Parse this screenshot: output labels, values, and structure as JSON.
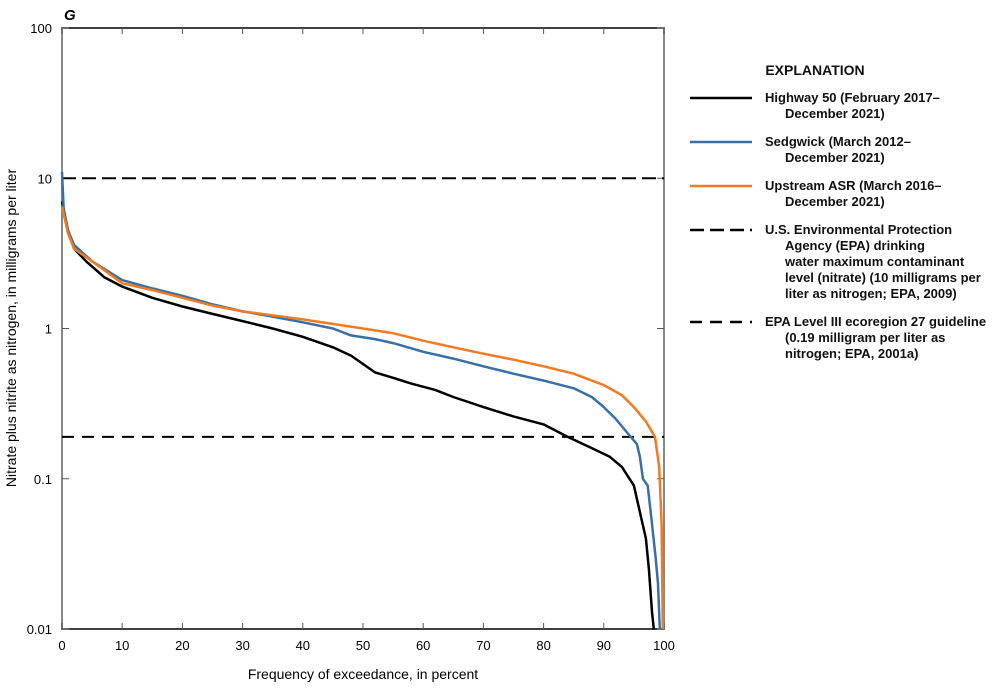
{
  "chart_data": {
    "type": "line",
    "panel_label": "G",
    "xlabel": "Frequency of exceedance, in percent",
    "ylabel": "Nitrate plus nitrite as nitrogen, in milligrams per liter",
    "xlim": [
      0,
      100
    ],
    "ylim": [
      0.01,
      100
    ],
    "yscale": "log",
    "grid": false,
    "xticks": [
      "0",
      "10",
      "20",
      "30",
      "40",
      "50",
      "60",
      "70",
      "80",
      "90",
      "100"
    ],
    "yticks": [
      "0.01",
      "0.1",
      "1",
      "10",
      "100"
    ],
    "legend_title": "EXPLANATION",
    "legend_position": "right",
    "series": [
      {
        "name": "Highway 50 (February 2017–December 2021)",
        "lines": [
          "Highway 50 (February 2017–",
          "December 2021)"
        ],
        "color": "#000000",
        "x": [
          0,
          1,
          2,
          4,
          7,
          10,
          15,
          20,
          25,
          30,
          35,
          40,
          45,
          48,
          50,
          52,
          55,
          58,
          62,
          65,
          70,
          75,
          80,
          84,
          88,
          91,
          93,
          95,
          96,
          97,
          97.5,
          98,
          98.3
        ],
        "y": [
          7,
          4.5,
          3.4,
          2.8,
          2.2,
          1.9,
          1.6,
          1.4,
          1.25,
          1.12,
          1.0,
          0.88,
          0.75,
          0.66,
          0.58,
          0.51,
          0.47,
          0.43,
          0.39,
          0.35,
          0.3,
          0.26,
          0.23,
          0.19,
          0.16,
          0.14,
          0.12,
          0.09,
          0.06,
          0.04,
          0.025,
          0.013,
          0.01
        ]
      },
      {
        "name": "Sedgwick (March 2012–December 2021)",
        "lines": [
          "Sedgwick (March 2012–",
          "December 2021)"
        ],
        "color": "#3a6fa5",
        "x": [
          0,
          0.3,
          1,
          2,
          5,
          10,
          15,
          20,
          25,
          30,
          35,
          40,
          45,
          48,
          52,
          55,
          60,
          65,
          70,
          75,
          80,
          85,
          88,
          90,
          92,
          94,
          95.5,
          96,
          96.5,
          97.3,
          98,
          98.6,
          99,
          99.3
        ],
        "y": [
          11,
          6,
          4.5,
          3.6,
          2.8,
          2.1,
          1.85,
          1.65,
          1.45,
          1.3,
          1.2,
          1.1,
          1.0,
          0.9,
          0.85,
          0.8,
          0.7,
          0.63,
          0.56,
          0.5,
          0.45,
          0.4,
          0.35,
          0.3,
          0.25,
          0.2,
          0.17,
          0.14,
          0.1,
          0.09,
          0.05,
          0.03,
          0.02,
          0.01
        ]
      },
      {
        "name": "Upstream ASR (March 2016–December 2021)",
        "lines": [
          "Upstream ASR (March 2016–",
          "December 2021)"
        ],
        "color": "#f07b22",
        "x": [
          0,
          1,
          2,
          5,
          10,
          15,
          20,
          25,
          30,
          40,
          50,
          55,
          60,
          65,
          70,
          75,
          80,
          85,
          90,
          93,
          95,
          97,
          98.5,
          99.2,
          99.6,
          99.8
        ],
        "y": [
          6.5,
          4.3,
          3.4,
          2.8,
          2.0,
          1.8,
          1.6,
          1.42,
          1.3,
          1.15,
          1.0,
          0.93,
          0.83,
          0.75,
          0.68,
          0.62,
          0.56,
          0.5,
          0.42,
          0.36,
          0.3,
          0.24,
          0.19,
          0.12,
          0.05,
          0.01
        ]
      }
    ],
    "reference_lines": [
      {
        "name": "U.S. Environmental Protection Agency (EPA) drinking water maximum contaminant level (nitrate) (10 milligrams per liter as nitrogen; EPA, 2009)",
        "lines": [
          "U.S. Environmental Protection",
          "Agency (EPA) drinking",
          "water maximum contaminant",
          "level (nitrate) (10 milligrams per",
          "liter as nitrogen; EPA, 2009)"
        ],
        "value": 10,
        "dash": "long"
      },
      {
        "name": "EPA Level III ecoregion 27 guideline (0.19 milligram per liter as nitrogen; EPA, 2001a)",
        "lines": [
          "EPA Level III ecoregion 27 guideline",
          "(0.19 milligram per liter as",
          "nitrogen; EPA, 2001a)"
        ],
        "value": 0.19,
        "dash": "short"
      }
    ]
  }
}
